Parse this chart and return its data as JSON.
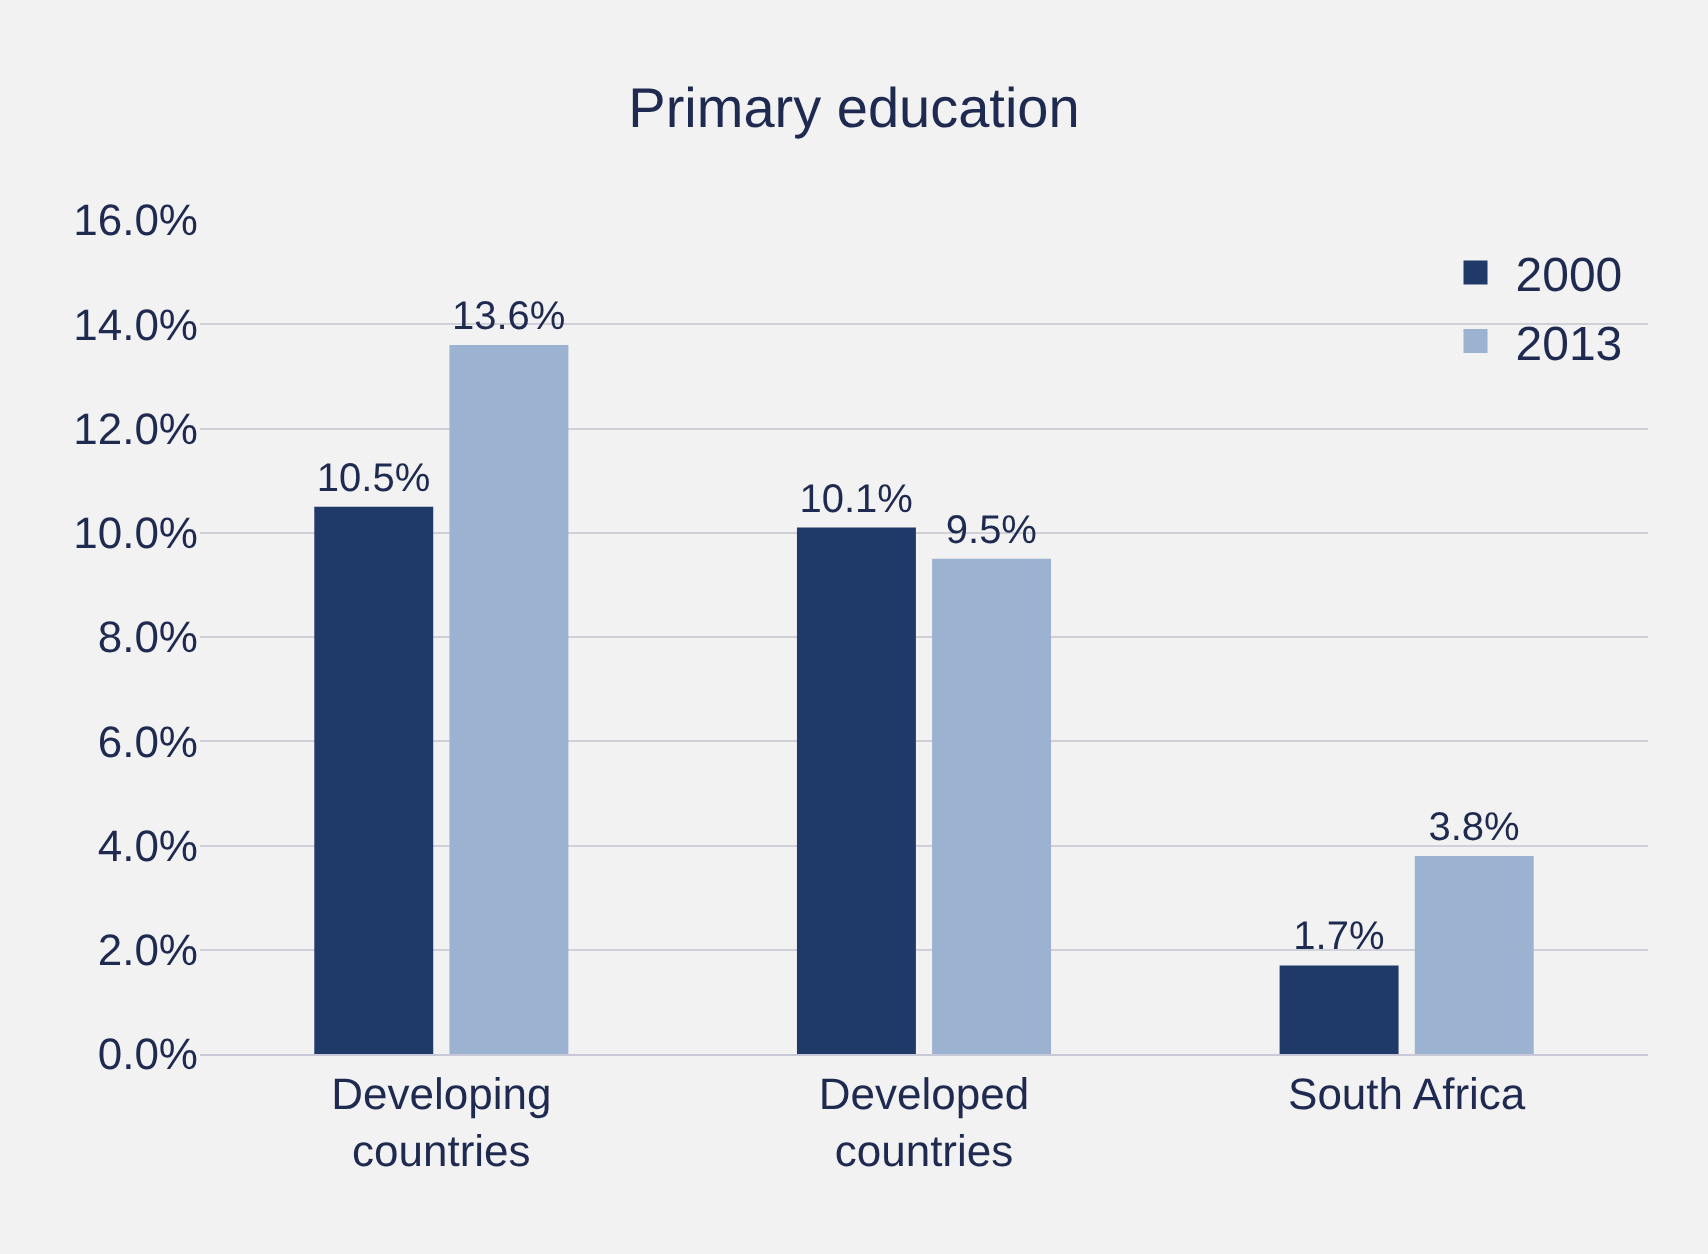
{
  "chart_data": {
    "type": "bar",
    "title": "Primary education",
    "categories": [
      "Developing countries",
      "Developed countries",
      "South Africa"
    ],
    "series": [
      {
        "name": "2000",
        "color": "#1f3a68",
        "values": [
          10.5,
          10.1,
          1.7
        ],
        "value_labels": [
          "10.5%",
          "10.1%",
          "1.7%"
        ]
      },
      {
        "name": "2013",
        "color": "#9bb3d0",
        "values": [
          13.6,
          9.5,
          3.8
        ],
        "value_labels": [
          "13.6%",
          "9.5%",
          "3.8%"
        ]
      }
    ],
    "ylim": [
      0,
      16
    ],
    "yticks": [
      {
        "value": 0,
        "label": "0.0%"
      },
      {
        "value": 2,
        "label": "2.0%"
      },
      {
        "value": 4,
        "label": "4.0%"
      },
      {
        "value": 6,
        "label": "6.0%"
      },
      {
        "value": 8,
        "label": "8.0%"
      },
      {
        "value": 10,
        "label": "10.0%"
      },
      {
        "value": 12,
        "label": "12.0%"
      },
      {
        "value": 14,
        "label": "14.0%"
      },
      {
        "value": 16,
        "label": "16.0%"
      }
    ],
    "grid": "y",
    "legend": "top right"
  }
}
